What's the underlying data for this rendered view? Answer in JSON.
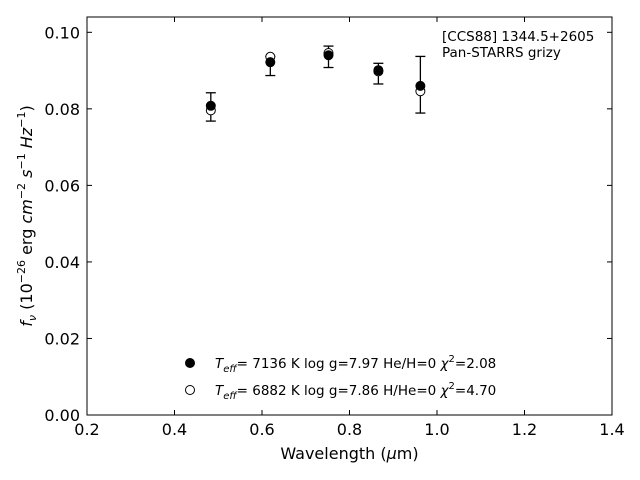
{
  "chart_data": {
    "type": "scatter",
    "xlabel_pre": "Wavelength (",
    "xlabel_mu": "μ",
    "xlabel_post": "m)",
    "ylabel": "f_ν (10^−26 erg cm^−2 s^−1 Hz^−1)",
    "xlim": [
      0.2,
      1.4
    ],
    "ylim": [
      0.0,
      0.104
    ],
    "xticks": [
      "0.2",
      "0.4",
      "0.6",
      "0.8",
      "1.0",
      "1.2",
      "1.4"
    ],
    "yticks": [
      "0.00",
      "0.02",
      "0.04",
      "0.06",
      "0.08",
      "0.10"
    ],
    "annotation": [
      "[CCS88] 1344.5+2605",
      "Pan-STARRS grizy"
    ],
    "observed": {
      "x": [
        0.483,
        0.619,
        0.752,
        0.866,
        0.962
      ],
      "y": [
        0.0805,
        0.0912,
        0.0936,
        0.0892,
        0.0863
      ],
      "yerr": [
        0.0037,
        0.0025,
        0.0028,
        0.0027,
        0.0074
      ]
    },
    "series": [
      {
        "marker": "filled",
        "x": [
          0.483,
          0.619,
          0.752,
          0.866,
          0.962
        ],
        "y": [
          0.0808,
          0.0922,
          0.094,
          0.0901,
          0.086
        ],
        "legend": {
          "teff": "7136 K",
          "logg": "log g=7.97",
          "comp": "He/H=0",
          "chi2": "=2.08"
        }
      },
      {
        "marker": "open",
        "x": [
          0.483,
          0.619,
          0.752,
          0.866,
          0.962
        ],
        "y": [
          0.0796,
          0.0936,
          0.0946,
          0.0898,
          0.0846
        ],
        "legend": {
          "teff": "6882 K",
          "logg": "log g=7.86",
          "comp": "H/He=0",
          "chi2": "=4.70"
        }
      }
    ]
  }
}
